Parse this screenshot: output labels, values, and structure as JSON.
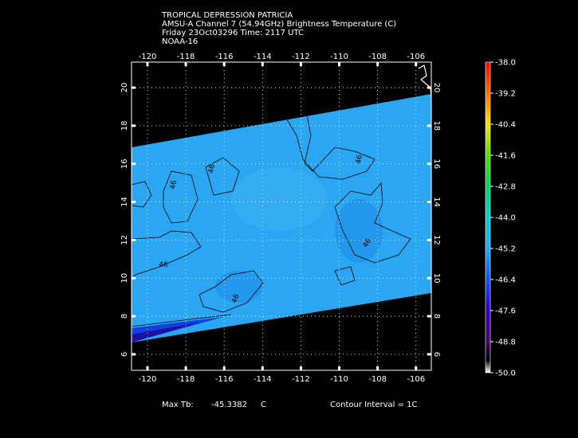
{
  "header": {
    "lines": [
      "TROPICAL DEPRESSION PATRICIA",
      "AMSU-A Channel 7 (54.94GHz) Brightness Temperature (C)",
      "Friday 23Oct03296 Time: 2117 UTC",
      "NOAA-16"
    ]
  },
  "map": {
    "xlim": [
      -120.83,
      -105.2
    ],
    "ylim": [
      5.16,
      21.34
    ],
    "xticks": [
      -120,
      -118,
      -116,
      -114,
      -112,
      -110,
      -108,
      -106
    ],
    "yticks": [
      6,
      8,
      10,
      12,
      14,
      16,
      18,
      20
    ],
    "grid": true,
    "contour_labels": [
      "46",
      "46",
      "46",
      "46",
      "46",
      "46"
    ]
  },
  "colorbar": {
    "lim": [
      -50,
      -38
    ],
    "ticks": [
      {
        "value": -38,
        "label": "-38.0"
      },
      {
        "value": -39.2,
        "label": "-39.2"
      },
      {
        "value": -40.4,
        "label": "-40.4"
      },
      {
        "value": -41.6,
        "label": "-41.6"
      },
      {
        "value": -42.8,
        "label": "-42.8"
      },
      {
        "value": -44,
        "label": "-44.0"
      },
      {
        "value": -45.2,
        "label": "-45.2"
      },
      {
        "value": -46.4,
        "label": "-46.4"
      },
      {
        "value": -47.6,
        "label": "-47.6"
      },
      {
        "value": -48.8,
        "label": "-48.8"
      },
      {
        "value": -50,
        "label": "-50.0"
      }
    ]
  },
  "footer": {
    "max_label": "Max Tb:",
    "max_value": -45.3382,
    "max_unit": "C",
    "contour_interval": "Contour Interval = 1C"
  }
}
